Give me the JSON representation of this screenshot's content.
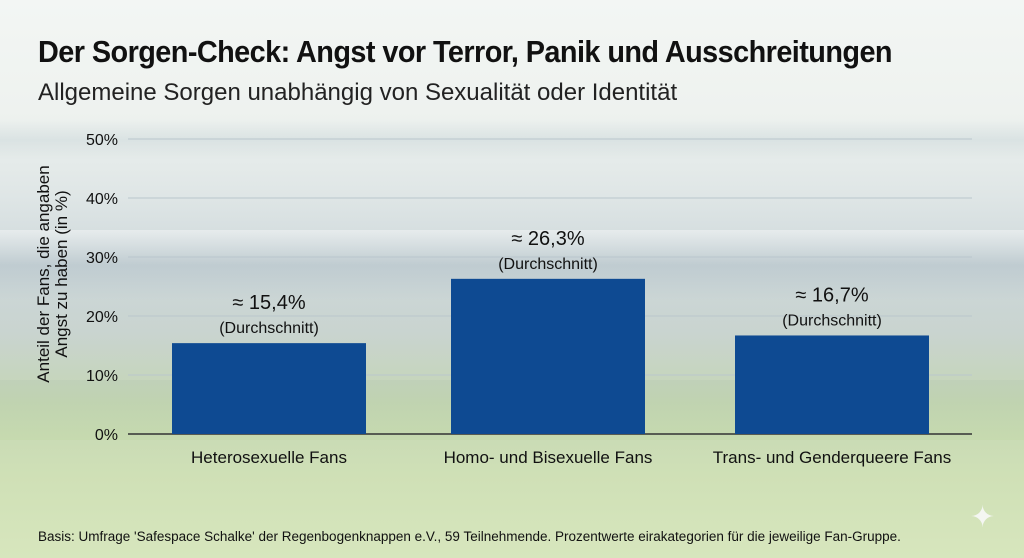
{
  "title": "Der Sorgen-Check: Angst vor Terror, Panik und Ausschreitungen",
  "subtitle": "Allgemeine Sorgen unabhängig von Sexualität oder Identität",
  "footer": "Basis: Umfrage 'Safespace Schalke' der Regenbogenknappen e.V., 59 Teilnehmende. Prozentwerte eirakategorien für die jeweilige Fan-Gruppe.",
  "chart_data": {
    "type": "bar",
    "title": "Der Sorgen-Check: Angst vor Terror, Panik und Ausschreitungen",
    "subtitle": "Allgemeine Sorgen unabhängig von Sexualität oder Identität",
    "xlabel": "",
    "ylabel": "Anteil der Fans, die angaben Angst zu haben (in %)",
    "ylim": [
      0,
      50
    ],
    "yticks": [
      "0%",
      "10%",
      "20%",
      "30%",
      "40%",
      "50%"
    ],
    "ytick_values": [
      0,
      10,
      20,
      30,
      40,
      50
    ],
    "grid": true,
    "categories": [
      "Heterosexuelle Fans",
      "Homo- und Bisexuelle Fans",
      "Trans- und Genderqueere Fans"
    ],
    "values": [
      15.4,
      26.3,
      16.7
    ],
    "data_labels": [
      "≈ 15,4%",
      "≈ 26,3%",
      "≈ 16,7%"
    ],
    "data_sublabel": "(Durchschnitt)",
    "bar_color": "#0e4a92"
  }
}
